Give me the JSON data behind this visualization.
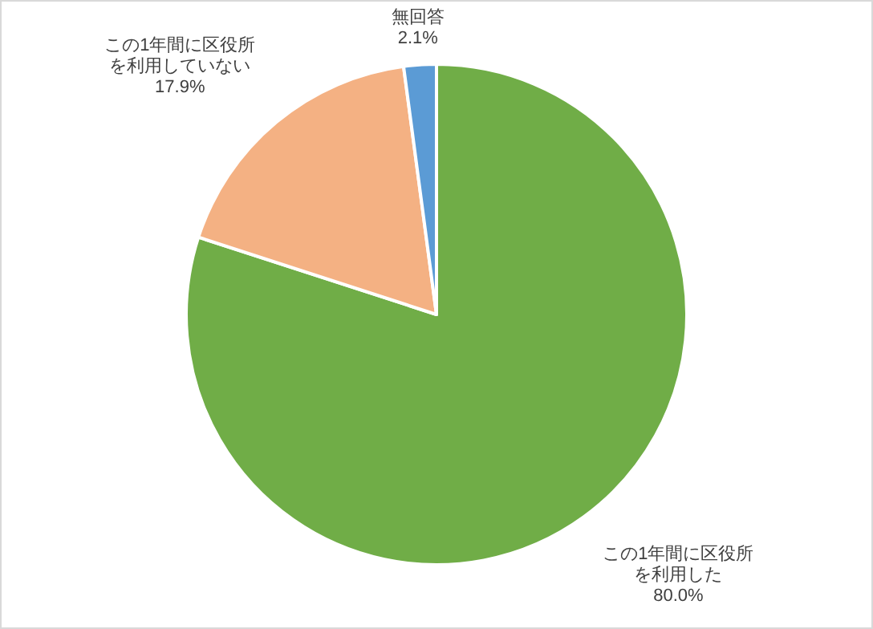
{
  "chart_data": {
    "type": "pie",
    "categories": [
      "この1年間に区役所を利用した",
      "この1年間に区役所を利用していない",
      "無回答"
    ],
    "values": [
      80.0,
      17.9,
      2.1
    ],
    "colors": [
      "#70ad47",
      "#f4b183",
      "#5b9bd5"
    ],
    "value_labels": [
      "80.0%",
      "17.9%",
      "2.1%"
    ]
  }
}
